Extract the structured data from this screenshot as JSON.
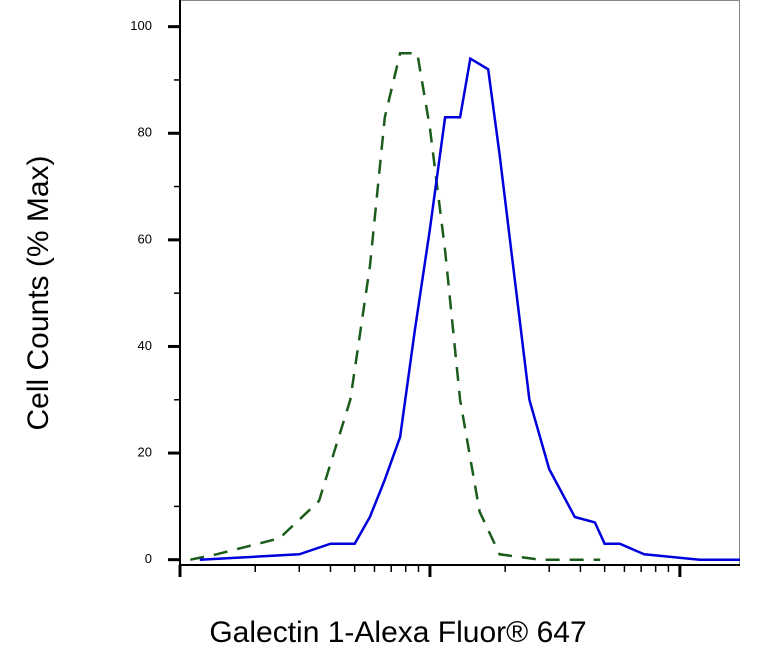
{
  "chart_data": {
    "type": "line",
    "x_label": "Galectin 1-Alexa Fluor® 647",
    "y_label": "Cell Counts (% Max)",
    "xscale": "log",
    "xlim": [
      1,
      174
    ],
    "xticks": [
      1,
      10,
      100
    ],
    "xminorticks": [
      2,
      3,
      4,
      5,
      6,
      7,
      8,
      9,
      20,
      30,
      40,
      50,
      60,
      70,
      80,
      90
    ],
    "ylim": [
      -1,
      105
    ],
    "yticks": [
      0,
      20,
      40,
      60,
      80,
      100
    ],
    "yminorticks": [
      10,
      30,
      50,
      70,
      90
    ],
    "series": [
      {
        "color": "#1a5c1a",
        "dashed": true,
        "x": [
          1.1,
          1.4,
          2.5,
          3.6,
          4.8,
          5.75,
          6.6,
          7.6,
          8.9,
          10,
          11.5,
          13.2,
          15.8,
          19,
          27.5,
          48
        ],
        "values": [
          0,
          1,
          4,
          11,
          30,
          55,
          83,
          95,
          95,
          81,
          58,
          30,
          9,
          1,
          0,
          0
        ]
      },
      {
        "color": "#0000dd",
        "dashed": false,
        "x": [
          1.2,
          3.0,
          4.0,
          5.0,
          5.75,
          6.6,
          7.6,
          8.7,
          10,
          11.5,
          13.2,
          14.5,
          17.1,
          19,
          21.8,
          25,
          30,
          38,
          45.7,
          50,
          57.5,
          72,
          120,
          174
        ],
        "values": [
          0,
          1,
          3,
          3,
          8,
          15,
          23,
          43,
          62,
          83,
          83,
          94,
          92,
          76,
          53,
          30,
          17,
          8,
          7,
          3,
          3,
          1,
          0,
          0
        ]
      }
    ]
  }
}
